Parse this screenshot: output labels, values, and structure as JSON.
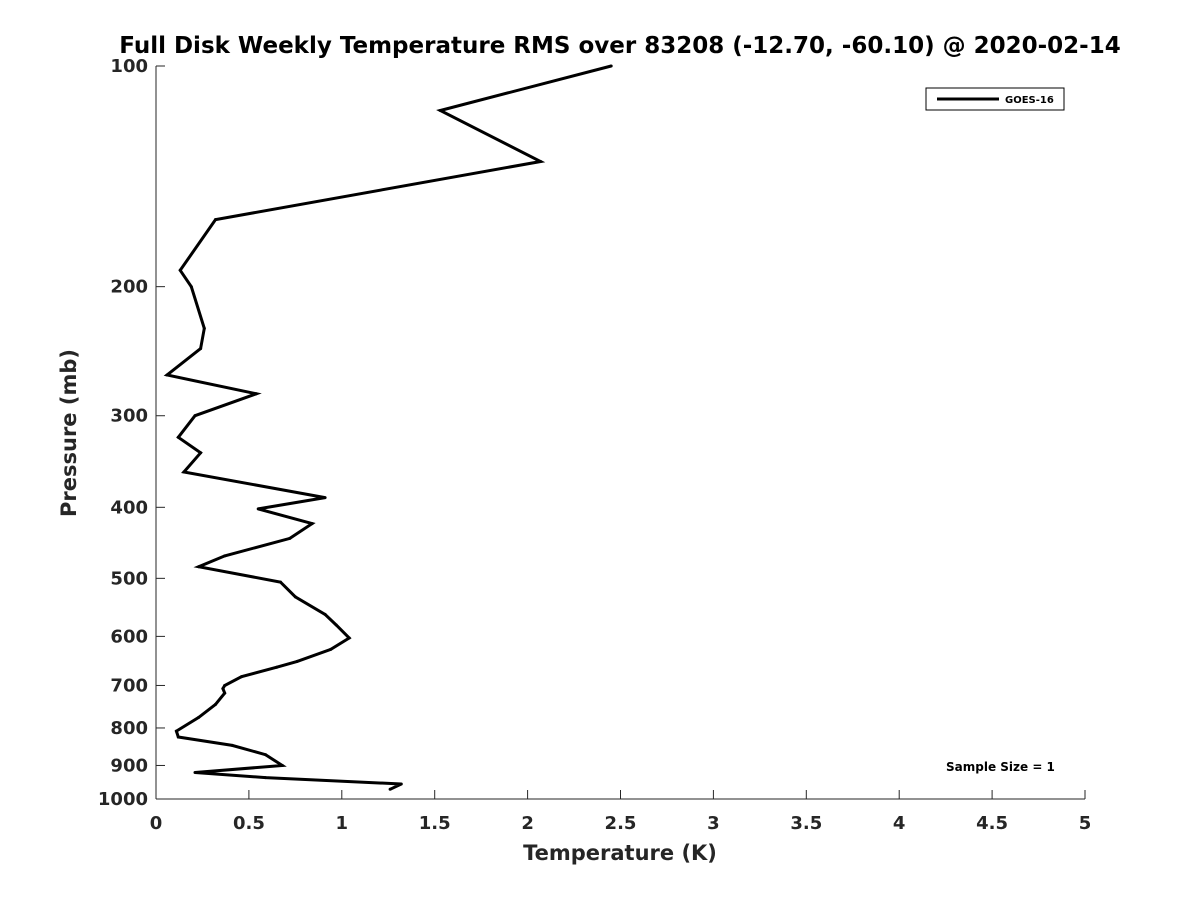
{
  "chart_data": {
    "type": "line",
    "title": "Full Disk Weekly Temperature RMS over 83208 (-12.70, -60.10) @ 2020-02-14",
    "xlabel": "Temperature (K)",
    "ylabel": "Pressure (mb)",
    "xlim": [
      0,
      5
    ],
    "ylim": [
      100,
      1000
    ],
    "y_scale": "log",
    "y_reversed": true,
    "x_ticks": [
      "0",
      "0.5",
      "1",
      "1.5",
      "2",
      "2.5",
      "3",
      "3.5",
      "4",
      "4.5",
      "5"
    ],
    "y_ticks": [
      "100",
      "200",
      "300",
      "400",
      "500",
      "600",
      "700",
      "800",
      "900",
      "1000"
    ],
    "grid": false,
    "legend_position": "top-right",
    "annotation": "Sample Size = 1",
    "series": [
      {
        "name": "GOES-16",
        "color": "#000000",
        "points": [
          [
            2.45,
            100
          ],
          [
            1.53,
            115
          ],
          [
            2.07,
            135
          ],
          [
            0.32,
            162
          ],
          [
            0.13,
            190
          ],
          [
            0.19,
            200
          ],
          [
            0.26,
            228
          ],
          [
            0.24,
            243
          ],
          [
            0.06,
            264
          ],
          [
            0.54,
            280
          ],
          [
            0.21,
            300
          ],
          [
            0.12,
            321
          ],
          [
            0.24,
            337
          ],
          [
            0.15,
            358
          ],
          [
            0.91,
            388
          ],
          [
            0.55,
            402
          ],
          [
            0.84,
            421
          ],
          [
            0.72,
            441
          ],
          [
            0.37,
            466
          ],
          [
            0.23,
            482
          ],
          [
            0.67,
            506
          ],
          [
            0.75,
            530
          ],
          [
            0.91,
            560
          ],
          [
            0.97,
            579
          ],
          [
            1.04,
            603
          ],
          [
            0.94,
            625
          ],
          [
            0.76,
            649
          ],
          [
            0.65,
            661
          ],
          [
            0.46,
            681
          ],
          [
            0.37,
            700
          ],
          [
            0.36,
            707
          ],
          [
            0.37,
            717
          ],
          [
            0.32,
            743
          ],
          [
            0.23,
            774
          ],
          [
            0.11,
            808
          ],
          [
            0.12,
            823
          ],
          [
            0.41,
            845
          ],
          [
            0.59,
            870
          ],
          [
            0.68,
            900
          ],
          [
            0.21,
            920
          ],
          [
            0.59,
            935
          ],
          [
            1.32,
            954
          ],
          [
            1.26,
            970
          ]
        ]
      }
    ]
  }
}
